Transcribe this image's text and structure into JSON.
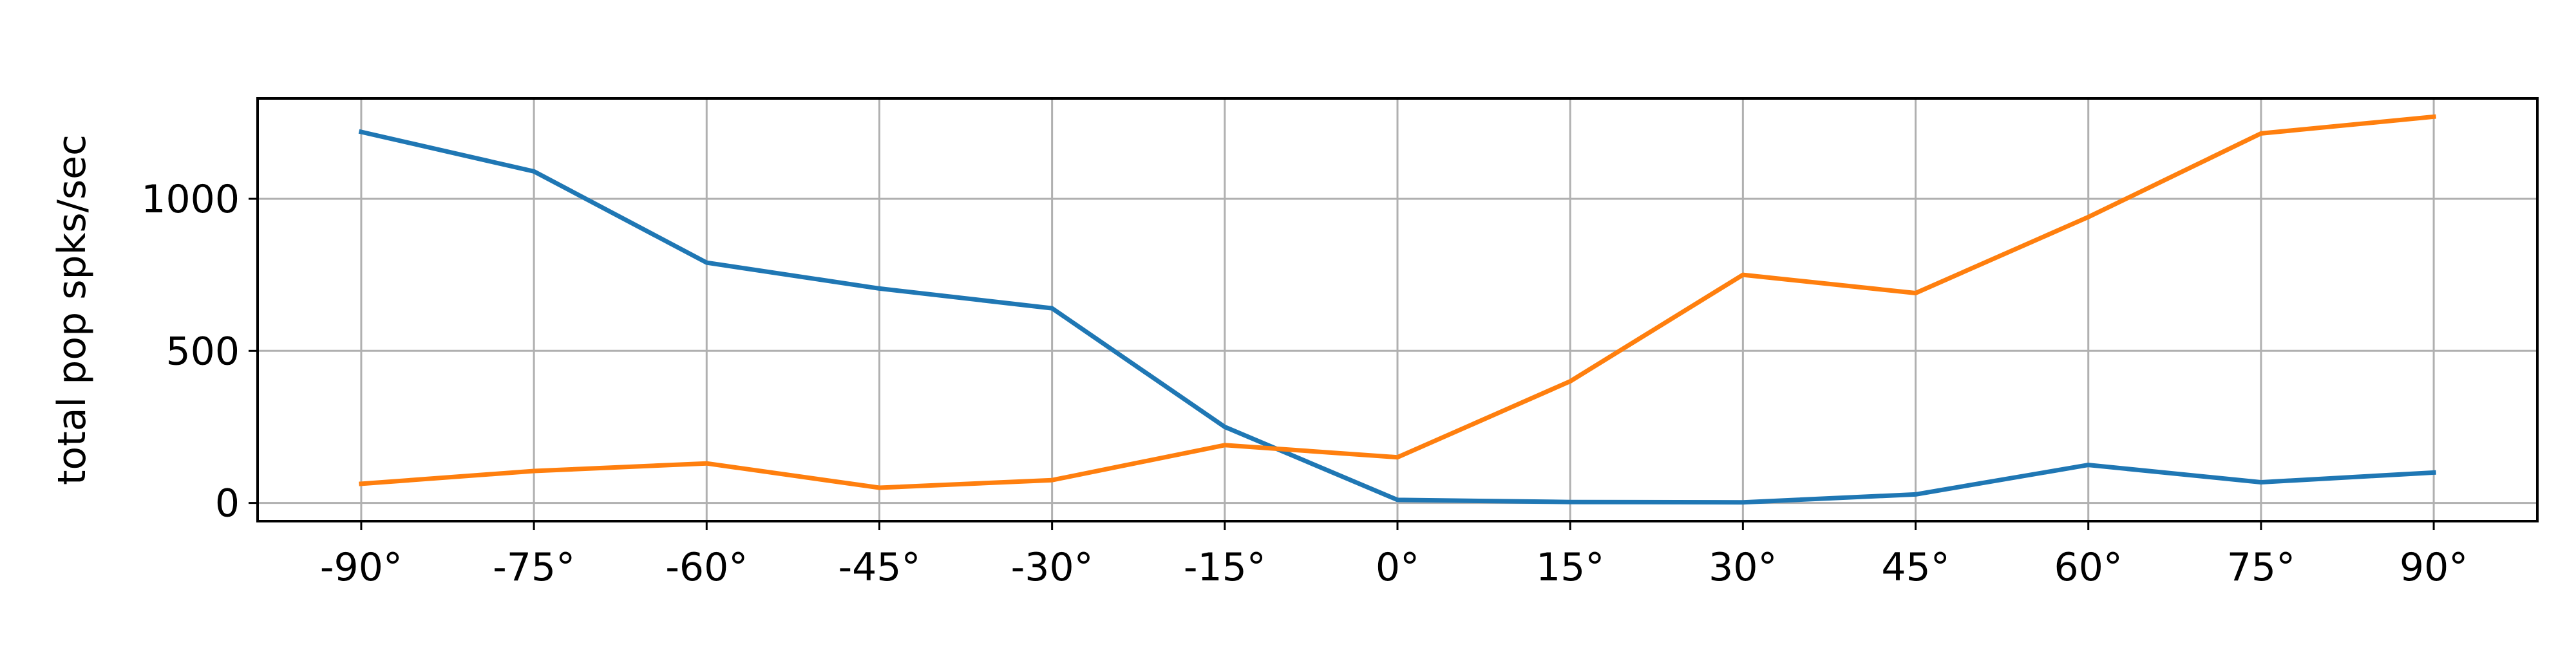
{
  "chart_data": {
    "type": "line",
    "title": "",
    "xlabel": "",
    "ylabel": "total pop spks/sec",
    "categories": [
      "-90°",
      "-75°",
      "-60°",
      "-45°",
      "-30°",
      "-15°",
      "0°",
      "15°",
      "30°",
      "45°",
      "60°",
      "75°",
      "90°"
    ],
    "x": [
      -90,
      -75,
      -60,
      -45,
      -30,
      -15,
      0,
      15,
      30,
      45,
      60,
      75,
      90
    ],
    "xlim": [
      -99,
      99
    ],
    "ylim": [
      -60,
      1330
    ],
    "yticks": [
      0,
      500,
      1000
    ],
    "grid": true,
    "legend": "none",
    "series": [
      {
        "color": "#1f77b4",
        "values": [
          1220,
          1090,
          790,
          705,
          640,
          250,
          10,
          3,
          2,
          28,
          125,
          68,
          100
        ]
      },
      {
        "color": "#ff7f0e",
        "values": [
          63,
          105,
          130,
          50,
          75,
          190,
          150,
          400,
          750,
          690,
          940,
          1215,
          1270
        ]
      }
    ]
  }
}
